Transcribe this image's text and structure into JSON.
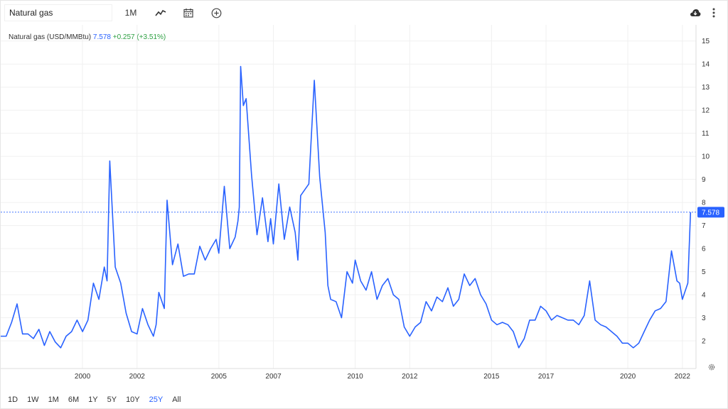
{
  "toolbar": {
    "search_value": "Natural gas",
    "interval_label": "1M",
    "chart_type_icon": "line-chart-icon",
    "calendar_icon": "calendar-icon",
    "add_icon": "plus-circle-icon",
    "download_icon": "cloud-download-icon",
    "more_icon": "more-vertical-icon"
  },
  "legend": {
    "name": "Natural gas (USD/MMBtu)",
    "price": "7.578",
    "change": "+0.257 (+3.51%)"
  },
  "ranges": [
    "1D",
    "1W",
    "1M",
    "6M",
    "1Y",
    "5Y",
    "10Y",
    "25Y",
    "All"
  ],
  "active_range": "25Y",
  "colors": {
    "line": "#2962ff",
    "up": "#2ea043",
    "grid": "#f0f0f0"
  },
  "chart_data": {
    "type": "line",
    "title": "",
    "xlabel": "",
    "ylabel": "",
    "xlim": [
      1997.0,
      2022.5
    ],
    "ylim": [
      0.8,
      15.7
    ],
    "yticks": [
      2,
      3,
      4,
      5,
      6,
      7,
      8,
      9,
      10,
      11,
      12,
      13,
      14,
      15
    ],
    "xtick_labels": [
      "2000",
      "2002",
      "2005",
      "2007",
      "2010",
      "2012",
      "2015",
      "2017",
      "2020",
      "2022"
    ],
    "last_value_label": "7.578",
    "series": [
      {
        "x": [
          1997.0,
          1997.2,
          1997.4,
          1997.6,
          1997.8,
          1998.0,
          1998.2,
          1998.4,
          1998.6,
          1998.8,
          1999.0,
          1999.2,
          1999.4,
          1999.6,
          1999.8,
          2000.0,
          2000.2,
          2000.4,
          2000.6,
          2000.8,
          2000.9,
          2001.0,
          2001.2,
          2001.4,
          2001.6,
          2001.8,
          2002.0,
          2002.2,
          2002.4,
          2002.6,
          2002.7,
          2002.8,
          2003.0,
          2003.1,
          2003.3,
          2003.5,
          2003.7,
          2003.9,
          2004.1,
          2004.3,
          2004.5,
          2004.7,
          2004.9,
          2005.0,
          2005.2,
          2005.4,
          2005.6,
          2005.7,
          2005.75,
          2005.8,
          2005.9,
          2006.0,
          2006.2,
          2006.4,
          2006.6,
          2006.8,
          2006.9,
          2007.0,
          2007.2,
          2007.4,
          2007.6,
          2007.8,
          2007.9,
          2008.0,
          2008.3,
          2008.5,
          2008.7,
          2008.9,
          2009.0,
          2009.1,
          2009.3,
          2009.5,
          2009.7,
          2009.9,
          2010.0,
          2010.2,
          2010.4,
          2010.6,
          2010.8,
          2011.0,
          2011.2,
          2011.4,
          2011.6,
          2011.8,
          2012.0,
          2012.2,
          2012.4,
          2012.6,
          2012.8,
          2013.0,
          2013.2,
          2013.4,
          2013.6,
          2013.8,
          2014.0,
          2014.2,
          2014.4,
          2014.6,
          2014.8,
          2015.0,
          2015.2,
          2015.4,
          2015.6,
          2015.8,
          2016.0,
          2016.2,
          2016.4,
          2016.6,
          2016.8,
          2017.0,
          2017.2,
          2017.4,
          2017.6,
          2017.8,
          2018.0,
          2018.2,
          2018.4,
          2018.6,
          2018.8,
          2019.0,
          2019.2,
          2019.4,
          2019.6,
          2019.8,
          2020.0,
          2020.2,
          2020.4,
          2020.6,
          2020.8,
          2021.0,
          2021.2,
          2021.4,
          2021.6,
          2021.8,
          2021.9,
          2022.0,
          2022.2,
          2022.3
        ],
        "y": [
          2.2,
          2.2,
          2.8,
          3.6,
          2.3,
          2.3,
          2.1,
          2.5,
          1.8,
          2.4,
          1.95,
          1.7,
          2.2,
          2.4,
          2.9,
          2.4,
          2.9,
          4.5,
          3.8,
          5.2,
          4.6,
          9.8,
          5.2,
          4.5,
          3.2,
          2.4,
          2.3,
          3.4,
          2.7,
          2.2,
          2.7,
          4.1,
          3.4,
          8.1,
          5.3,
          6.2,
          4.8,
          4.9,
          4.9,
          6.1,
          5.5,
          6.0,
          6.4,
          5.8,
          8.7,
          6.0,
          6.5,
          7.2,
          7.8,
          13.9,
          12.2,
          12.5,
          9.2,
          6.6,
          8.2,
          6.3,
          7.3,
          6.2,
          8.8,
          6.4,
          7.8,
          6.7,
          5.5,
          8.3,
          8.8,
          13.3,
          9.1,
          6.7,
          4.4,
          3.8,
          3.7,
          3.0,
          5.0,
          4.5,
          5.5,
          4.6,
          4.2,
          5.0,
          3.8,
          4.4,
          4.7,
          4.0,
          3.8,
          2.6,
          2.2,
          2.6,
          2.8,
          3.7,
          3.3,
          3.9,
          3.7,
          4.3,
          3.5,
          3.8,
          4.9,
          4.4,
          4.7,
          4.0,
          3.6,
          2.9,
          2.7,
          2.8,
          2.7,
          2.4,
          1.7,
          2.1,
          2.9,
          2.9,
          3.5,
          3.3,
          2.9,
          3.1,
          3.0,
          2.9,
          2.9,
          2.7,
          3.1,
          4.6,
          2.9,
          2.7,
          2.6,
          2.4,
          2.2,
          1.9,
          1.9,
          1.7,
          1.9,
          2.4,
          2.9,
          3.3,
          3.4,
          3.7,
          5.9,
          4.6,
          4.5,
          3.8,
          4.5,
          7.578
        ]
      }
    ]
  }
}
